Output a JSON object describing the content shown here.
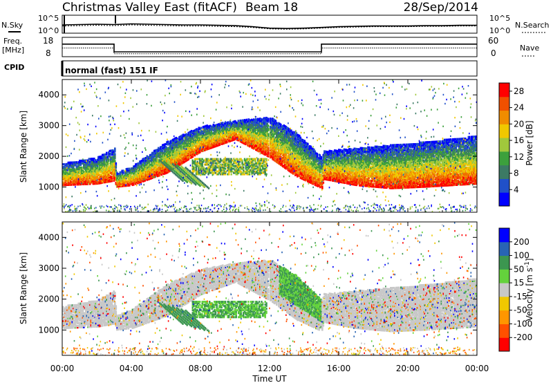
{
  "header": {
    "station": "Christmas Valley East (fitACF)",
    "beam": "Beam 18",
    "date": "28/Sep/2014"
  },
  "noise_panel": {
    "left_label": "N.Sky",
    "right_label": "N.Search",
    "left_ticks": [
      "10^5",
      "10^0"
    ],
    "right_ticks": [
      "10^5",
      "10^0"
    ]
  },
  "freq_panel": {
    "left_label_line1": "Freq.",
    "left_label_line2": "[MHz]",
    "right_label": "Nave",
    "left_ticks": [
      "18",
      "8"
    ],
    "right_ticks": [
      "60",
      "0"
    ]
  },
  "cpid": {
    "label": "CPID",
    "value": "normal (fast) 151 IF"
  },
  "time_axis": {
    "label": "Time UT",
    "ticks": [
      "00:00",
      "04:00",
      "08:00",
      "12:00",
      "16:00",
      "20:00",
      "00:00"
    ]
  },
  "colors": {
    "scale_power": [
      "#0000ff",
      "#2050c8",
      "#3c7a64",
      "#3ca03c",
      "#a0c83c",
      "#f0c800",
      "#f08c00",
      "#f05000",
      "#ff0000"
    ],
    "scale_velocity": [
      "#ff0000",
      "#ff5000",
      "#ff9600",
      "#f0c800",
      "#c8c8c8",
      "#64d23c",
      "#3c9650",
      "#2864b4",
      "#0000ff"
    ]
  },
  "chart_data": [
    {
      "type": "line",
      "title": "",
      "xlabel": "",
      "ylabel": "N.Sky",
      "x_range_hours": [
        0,
        24
      ],
      "x": [
        0,
        1,
        2,
        3,
        4,
        5,
        6,
        7,
        8,
        9,
        10,
        11,
        12,
        13,
        14,
        15,
        16,
        17,
        18,
        19,
        20,
        21,
        22,
        23,
        24
      ],
      "series": [
        {
          "values": [
            2.3,
            2.4,
            2.5,
            2.4,
            2.6,
            2.5,
            2.4,
            2.3,
            2.3,
            2.2,
            2.1,
            1.8,
            1.4,
            1.3,
            1.4,
            1.6,
            1.8,
            1.9,
            2.0,
            2.0,
            2.0,
            2.1,
            2.1,
            2.2,
            2.2
          ]
        },
        {
          "values": [
            2.0,
            2.1,
            2.2,
            2.1,
            2.3,
            2.2,
            2.1,
            2.0,
            2.0,
            1.9,
            1.8,
            1.6,
            1.2,
            1.1,
            1.2,
            1.4,
            1.6,
            1.7,
            1.8,
            1.8,
            1.8,
            1.9,
            1.9,
            2.0,
            2.0
          ]
        }
      ]
    },
    {
      "type": "line",
      "title": "",
      "xlabel": "",
      "ylabel": "Freq. [MHz]",
      "ylim": [
        8,
        18
      ],
      "x": [
        0,
        3,
        3,
        15,
        15,
        24
      ],
      "series": [
        {
          "values": [
            14.5,
            14.5,
            10.5,
            10.5,
            14.5,
            14.5
          ]
        },
        {
          "values": [
            12.5,
            12.5,
            9.5,
            9.5,
            12.5,
            12.5
          ]
        }
      ]
    },
    {
      "type": "heatmap",
      "title": "",
      "xlabel": "",
      "ylabel": "Slant Range [km]",
      "quantity": "Power [dB]",
      "ylim": [
        180,
        4500
      ],
      "y_ticks": [
        1000,
        2000,
        3000,
        4000
      ],
      "colorbar_ticks": [
        4,
        8,
        12,
        16,
        20,
        24,
        28
      ],
      "colorbar_range": [
        0,
        30
      ]
    },
    {
      "type": "heatmap",
      "title": "",
      "xlabel": "Time UT",
      "ylabel": "Slant Range [km]",
      "quantity": "Velocity [m s^-1]",
      "ylim": [
        180,
        4500
      ],
      "y_ticks": [
        1000,
        2000,
        3000,
        4000
      ],
      "colorbar_ticks": [
        200,
        100,
        50,
        15,
        -15,
        -50,
        -100,
        -200
      ]
    }
  ]
}
